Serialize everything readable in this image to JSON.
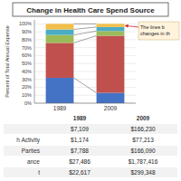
{
  "chart_data": {
    "type": "bar",
    "title": "Change in Health Care Spend Source",
    "categories": [
      "1989",
      "2009"
    ],
    "stacked": true,
    "series": [
      {
        "color": "#4472C4",
        "values": [
          32,
          13
        ]
      },
      {
        "color": "#C0504D",
        "values": [
          44,
          72
        ]
      },
      {
        "color": "#9BBB59",
        "values": [
          10,
          6
        ]
      },
      {
        "color": "#4BACC6",
        "values": [
          7,
          5
        ]
      },
      {
        "color": "#F2BE49",
        "values": [
          7,
          4
        ]
      }
    ],
    "ylabel": "Percent of Total Annual Expense",
    "ylim": [
      0,
      105
    ],
    "yticks": [
      {
        "value": 0,
        "label": "0%"
      },
      {
        "value": 10,
        "label": "10%"
      },
      {
        "value": 20,
        "label": "20%"
      },
      {
        "value": 30,
        "label": "30%"
      },
      {
        "value": 40,
        "label": "40%"
      },
      {
        "value": 50,
        "label": "50%"
      },
      {
        "value": 60,
        "label": "60%"
      },
      {
        "value": 70,
        "label": "70%"
      },
      {
        "value": 80,
        "label": "80%"
      },
      {
        "value": 90,
        "label": "90%"
      },
      {
        "value": 100,
        "label": "100%"
      }
    ],
    "grid": true,
    "annotation": "The lines b\nchanges in th",
    "table": {
      "row_labels": [
        null,
        "h Activity",
        "Parties",
        "ance",
        "t"
      ],
      "columns": [
        [
          "$7,109",
          "$1,174",
          "$7,788",
          "$27,486",
          "$22,617"
        ],
        [
          "$166,230",
          "$77,213",
          "$166,090",
          "$1,787,416",
          "$299,348"
        ]
      ]
    }
  }
}
